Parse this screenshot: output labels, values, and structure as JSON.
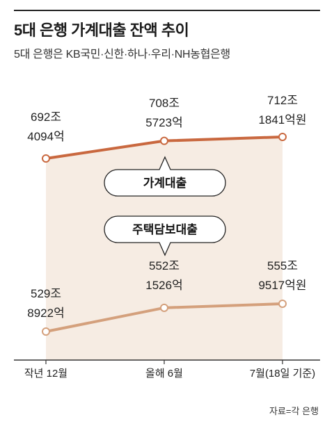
{
  "title": "5대 은행 가계대출 잔액 추이",
  "subtitle": "5대 은행은 KB국민·신한·하나·우리·NH농협은행",
  "source": "자료=각 은행",
  "colors": {
    "household_line": "#c9683f",
    "mortgage_line": "#d4a07c",
    "band_fill": "#f6ece3",
    "marker_fill": "#ffffff"
  },
  "chart_data": {
    "type": "line",
    "categories": [
      "작년 12월",
      "올해 6월",
      "7월(18일 기준)"
    ],
    "series": [
      {
        "name": "가계대출",
        "values": [
          692.4094,
          708.5723,
          712.1841
        ],
        "labels": [
          [
            "692조",
            "4094억"
          ],
          [
            "708조",
            "5723억"
          ],
          [
            "712조",
            "1841억원"
          ]
        ]
      },
      {
        "name": "주택담보대출",
        "values": [
          529.8922,
          552.1526,
          555.9517
        ],
        "labels": [
          [
            "529조",
            "8922억"
          ],
          [
            "552조",
            "1526억"
          ],
          [
            "555조",
            "9517억원"
          ]
        ]
      }
    ],
    "y_unit": "조원",
    "grid": false,
    "legend": "callout labels between lines"
  }
}
